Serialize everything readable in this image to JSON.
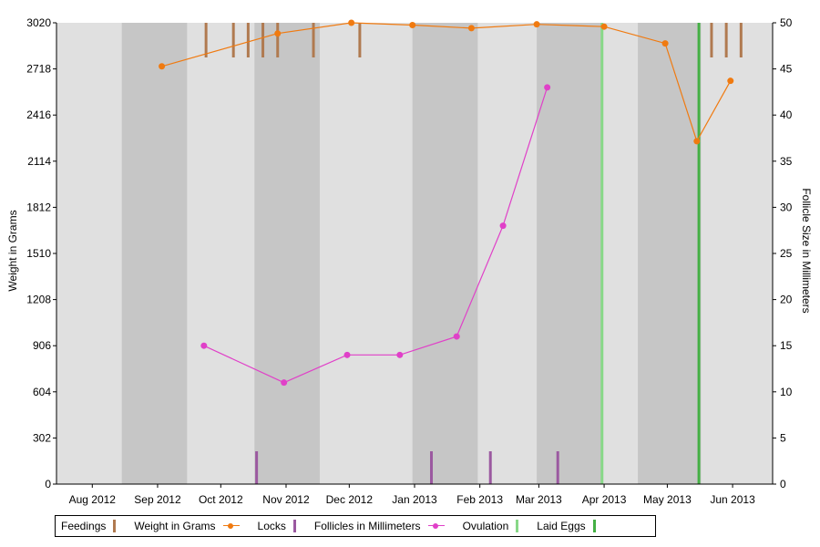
{
  "chart_data": {
    "type": "line",
    "xlabel": "",
    "ylabel_left": "Weight in Grams",
    "ylabel_right": "Follicle Size in Millimeters",
    "x_range": [
      "2012-07-15",
      "2013-06-20"
    ],
    "x_ticks": [
      {
        "date": "2012-08-01",
        "label": "Aug 2012"
      },
      {
        "date": "2012-09-01",
        "label": "Sep 2012"
      },
      {
        "date": "2012-10-01",
        "label": "Oct 2012"
      },
      {
        "date": "2012-11-01",
        "label": "Nov 2012"
      },
      {
        "date": "2012-12-01",
        "label": "Dec 2012"
      },
      {
        "date": "2013-01-01",
        "label": "Jan 2013"
      },
      {
        "date": "2013-02-01",
        "label": "Feb 2013"
      },
      {
        "date": "2013-03-01",
        "label": "Mar 2013"
      },
      {
        "date": "2013-04-01",
        "label": "Apr 2013"
      },
      {
        "date": "2013-05-01",
        "label": "May 2013"
      },
      {
        "date": "2013-06-01",
        "label": "Jun 2013"
      }
    ],
    "y_left": {
      "min": 0,
      "max": 3020,
      "ticks": [
        0,
        302,
        604,
        906,
        1208,
        1510,
        1812,
        2114,
        2416,
        2718,
        3020
      ]
    },
    "y_right": {
      "min": 0,
      "max": 50,
      "ticks": [
        0,
        5,
        10,
        15,
        20,
        25,
        30,
        35,
        40,
        45,
        50
      ]
    },
    "shaded_bands": [
      {
        "start": "2012-08-15",
        "end": "2012-09-15"
      },
      {
        "start": "2012-10-17",
        "end": "2012-11-17"
      },
      {
        "start": "2012-12-31",
        "end": "2013-01-31"
      },
      {
        "start": "2013-02-28",
        "end": "2013-03-31"
      },
      {
        "start": "2013-04-17",
        "end": "2013-05-17"
      }
    ],
    "series": [
      {
        "name": "Feedings",
        "kind": "event_ticks_top",
        "color": "#b07a50",
        "dates": [
          "2012-09-24",
          "2012-10-07",
          "2012-10-14",
          "2012-10-21",
          "2012-10-28",
          "2012-11-14",
          "2012-12-06",
          "2013-05-22",
          "2013-05-29",
          "2013-06-05"
        ]
      },
      {
        "name": "Weight in Grams",
        "kind": "line",
        "axis": "left",
        "color": "#f07a10",
        "points": [
          {
            "x": "2012-09-03",
            "y": 2735
          },
          {
            "x": "2012-10-28",
            "y": 2950
          },
          {
            "x": "2012-12-02",
            "y": 3020
          },
          {
            "x": "2012-12-31",
            "y": 3005
          },
          {
            "x": "2013-01-28",
            "y": 2985
          },
          {
            "x": "2013-02-28",
            "y": 3010
          },
          {
            "x": "2013-04-01",
            "y": 2995
          },
          {
            "x": "2013-04-30",
            "y": 2885
          },
          {
            "x": "2013-05-15",
            "y": 2245
          },
          {
            "x": "2013-05-31",
            "y": 2640
          }
        ]
      },
      {
        "name": "Locks",
        "kind": "event_ticks_bottom",
        "color": "#9b59a0",
        "dates": [
          "2012-10-18",
          "2013-01-09",
          "2013-02-06",
          "2013-03-10"
        ]
      },
      {
        "name": "Follicles in Millimeters",
        "kind": "line",
        "axis": "right",
        "color": "#e040c8",
        "points": [
          {
            "x": "2012-09-23",
            "y": 15
          },
          {
            "x": "2012-10-31",
            "y": 11
          },
          {
            "x": "2012-11-30",
            "y": 14
          },
          {
            "x": "2012-12-25",
            "y": 14
          },
          {
            "x": "2013-01-21",
            "y": 16
          },
          {
            "x": "2013-02-12",
            "y": 28
          },
          {
            "x": "2013-03-05",
            "y": 43
          }
        ]
      },
      {
        "name": "Ovulation",
        "kind": "event_lines",
        "color": "#88d888",
        "dates": [
          "2013-03-31"
        ]
      },
      {
        "name": "Laid Eggs",
        "kind": "event_lines",
        "color": "#44b044",
        "dates": [
          "2013-05-16"
        ]
      }
    ],
    "legend_placement": "bottom",
    "grid": false
  }
}
